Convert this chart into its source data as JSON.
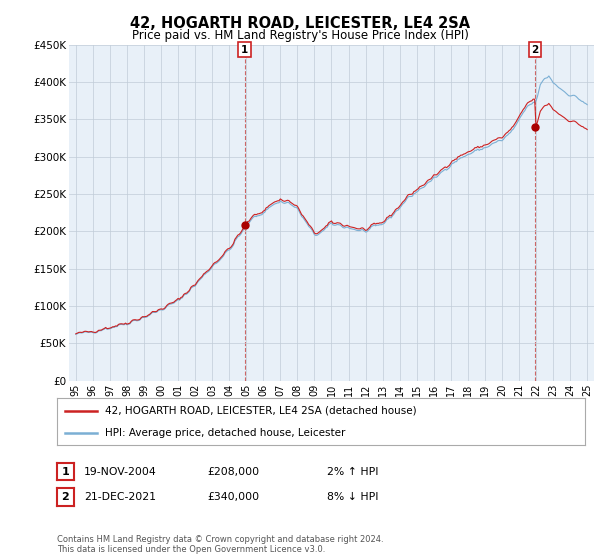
{
  "title": "42, HOGARTH ROAD, LEICESTER, LE4 2SA",
  "subtitle": "Price paid vs. HM Land Registry's House Price Index (HPI)",
  "ylim": [
    0,
    450000
  ],
  "yticks": [
    0,
    50000,
    100000,
    150000,
    200000,
    250000,
    300000,
    350000,
    400000,
    450000
  ],
  "ytick_labels": [
    "£0",
    "£50K",
    "£100K",
    "£150K",
    "£200K",
    "£250K",
    "£300K",
    "£350K",
    "£400K",
    "£450K"
  ],
  "xlim_start": 1994.6,
  "xlim_end": 2025.4,
  "xtick_years": [
    1995,
    1996,
    1997,
    1998,
    1999,
    2000,
    2001,
    2002,
    2003,
    2004,
    2005,
    2006,
    2007,
    2008,
    2009,
    2010,
    2011,
    2012,
    2013,
    2014,
    2015,
    2016,
    2017,
    2018,
    2019,
    2020,
    2021,
    2022,
    2023,
    2024,
    2025
  ],
  "hpi_color": "#7bafd4",
  "price_color": "#cc2222",
  "marker_color": "#aa0000",
  "vline_color": "#cc6666",
  "chart_bg": "#e8f0f8",
  "grid_color": "#c0ccd8",
  "background_color": "#ffffff",
  "transaction1_year": 2004.9,
  "transaction1_price": 208000,
  "transaction2_year": 2021.95,
  "transaction2_price": 340000,
  "legend_line1": "42, HOGARTH ROAD, LEICESTER, LE4 2SA (detached house)",
  "legend_line2": "HPI: Average price, detached house, Leicester",
  "annotation1_date": "19-NOV-2004",
  "annotation1_price": "£208,000",
  "annotation1_hpi": "2% ↑ HPI",
  "annotation2_date": "21-DEC-2021",
  "annotation2_price": "£340,000",
  "annotation2_hpi": "8% ↓ HPI",
  "footer": "Contains HM Land Registry data © Crown copyright and database right 2024.\nThis data is licensed under the Open Government Licence v3.0."
}
